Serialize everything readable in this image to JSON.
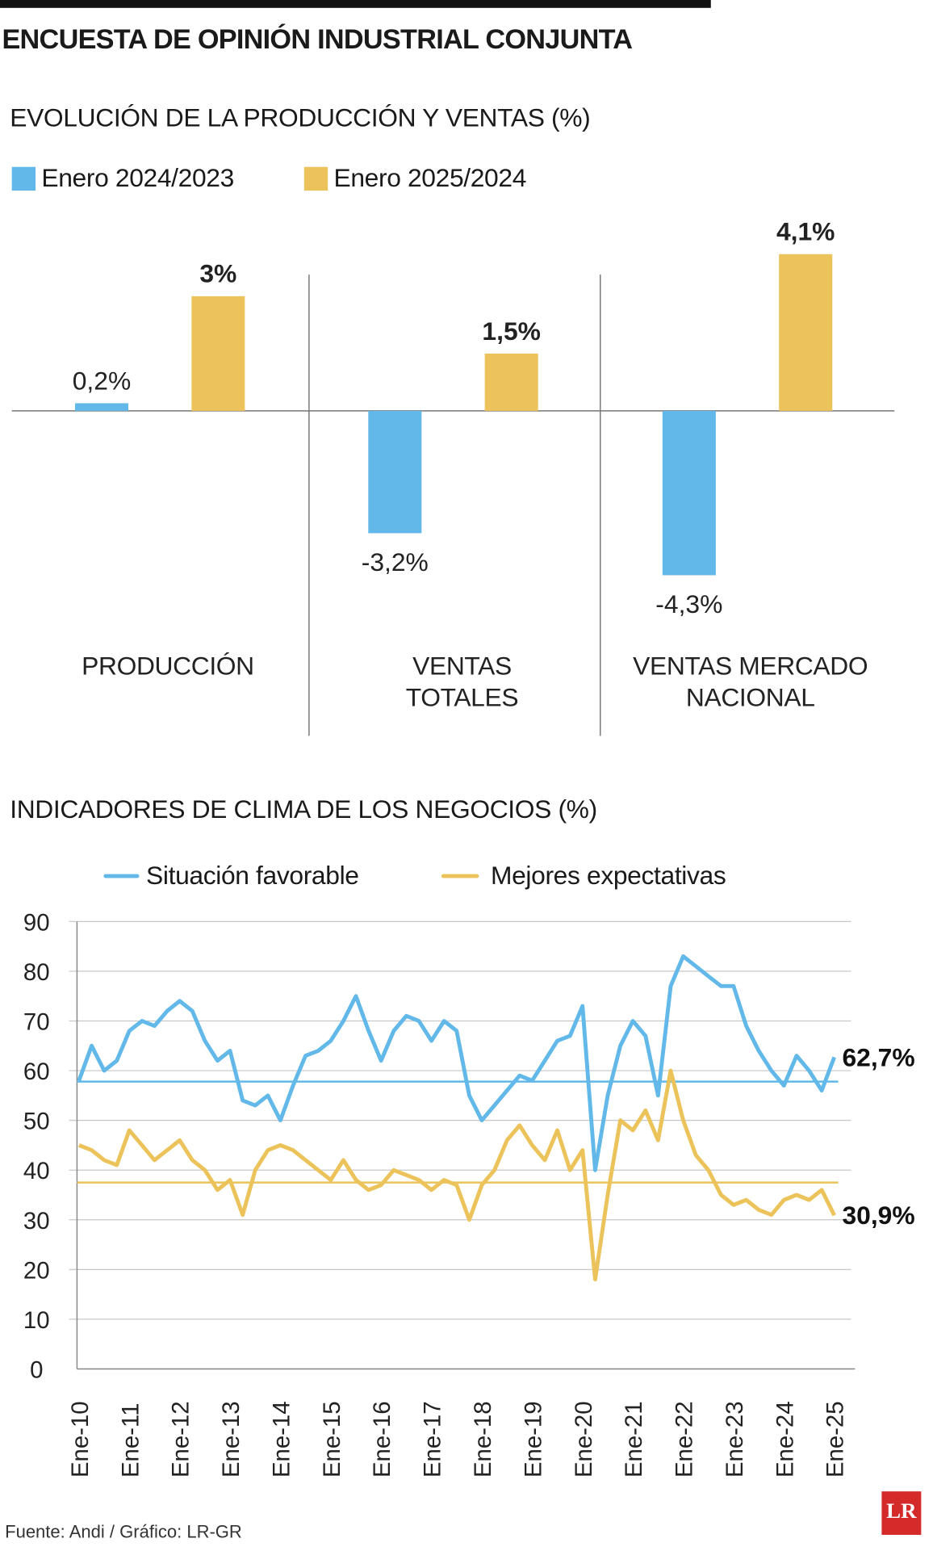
{
  "title": "ENCUESTA DE OPINIÓN INDUSTRIAL CONJUNTA",
  "source": "Fuente: Andi / Gráfico: LR-GR",
  "logo": "LR",
  "colors": {
    "blue": "#62b8e8",
    "yellow": "#ecc35a"
  },
  "chart_data": [
    {
      "type": "bar",
      "title": "EVOLUCIÓN DE LA PRODUCCIÓN Y VENTAS (%)",
      "categories": [
        "PRODUCCIÓN",
        "VENTAS TOTALES",
        "VENTAS MERCADO NACIONAL"
      ],
      "category_lines": [
        [
          "PRODUCCIÓN"
        ],
        [
          "VENTAS",
          "TOTALES"
        ],
        [
          "VENTAS MERCADO",
          "NACIONAL"
        ]
      ],
      "series": [
        {
          "name": "Enero 2024/2023",
          "color": "#62b8e8",
          "values": [
            0.2,
            -3.2,
            -4.3
          ],
          "labels": [
            "0,2%",
            "-3,2%",
            "-4,3%"
          ]
        },
        {
          "name": "Enero 2025/2024",
          "color": "#ecc35a",
          "values": [
            3,
            1.5,
            4.1
          ],
          "labels": [
            "3%",
            "1,5%",
            "4,1%"
          ]
        }
      ],
      "legend": "top-left",
      "grid": false
    },
    {
      "type": "line",
      "title": "INDICADORES DE CLIMA DE LOS NEGOCIOS (%)",
      "x_ticks": [
        "Ene-10",
        "Ene-11",
        "Ene-12",
        "Ene-13",
        "Ene-14",
        "Ene-15",
        "Ene-16",
        "Ene-17",
        "Ene-18",
        "Ene-19",
        "Ene-20",
        "Ene-21",
        "Ene-22",
        "Ene-23",
        "Ene-24",
        "Ene-25"
      ],
      "y_ticks": [
        "0",
        "10",
        "20",
        "30",
        "40",
        "50",
        "60",
        "70",
        "80",
        "90"
      ],
      "ylim": [
        0,
        90
      ],
      "x_start": "2010-01",
      "x_step": "quarterly",
      "grid": true,
      "legend": "top",
      "series": [
        {
          "name": "Situación favorable",
          "color": "#62b8e8",
          "average": 57.8,
          "end_label": "62,7%",
          "values": [
            58,
            65,
            60,
            62,
            68,
            70,
            69,
            72,
            74,
            72,
            66,
            62,
            64,
            54,
            53,
            55,
            50,
            57,
            63,
            64,
            66,
            70,
            75,
            68,
            62,
            68,
            71,
            70,
            66,
            70,
            68,
            55,
            50,
            53,
            56,
            59,
            58,
            62,
            66,
            67,
            73,
            40,
            55,
            65,
            70,
            67,
            55,
            77,
            83,
            81,
            79,
            77,
            77,
            69,
            64,
            60,
            57,
            63,
            60,
            56,
            62.7
          ]
        },
        {
          "name": "Mejores expectativas",
          "color": "#ecc35a",
          "average": 37.5,
          "end_label": "30,9%",
          "values": [
            45,
            44,
            42,
            41,
            48,
            45,
            42,
            44,
            46,
            42,
            40,
            36,
            38,
            31,
            40,
            44,
            45,
            44,
            42,
            40,
            38,
            42,
            38,
            36,
            37,
            40,
            39,
            38,
            36,
            38,
            37,
            30,
            37,
            40,
            46,
            49,
            45,
            42,
            48,
            40,
            44,
            18,
            35,
            50,
            48,
            52,
            46,
            60,
            50,
            43,
            40,
            35,
            33,
            34,
            32,
            31,
            34,
            35,
            34,
            36,
            30.9
          ]
        }
      ]
    }
  ]
}
